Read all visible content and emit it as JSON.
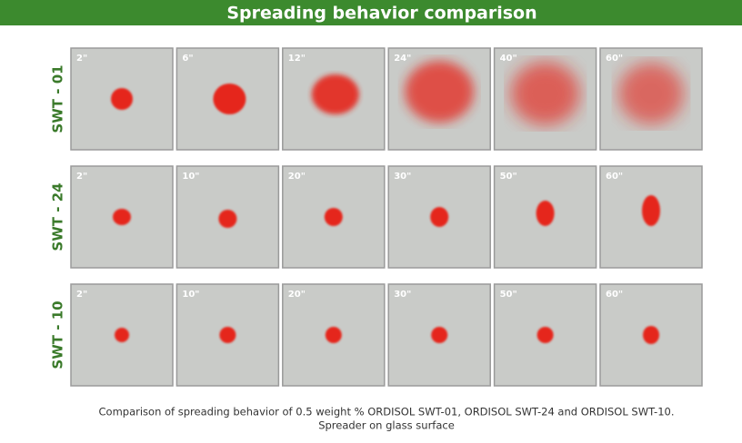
{
  "header": {
    "title": "Spreading behavior comparison"
  },
  "rows": [
    {
      "label": "SWT - 01",
      "times": [
        "2\"",
        "6\"",
        "12\"",
        "24\"",
        "40\"",
        "60\""
      ]
    },
    {
      "label": "SWT - 24",
      "times": [
        "2\"",
        "10\"",
        "20\"",
        "30\"",
        "50\"",
        "60\""
      ]
    },
    {
      "label": "SWT - 10",
      "times": [
        "2\"",
        "10\"",
        "20\"",
        "30\"",
        "50\"",
        "60\""
      ]
    }
  ],
  "caption": [
    "Comparison of spreading behavior of 0.5 weight % ORDISOL SWT-01, ORDISOL SWT-24 and ORDISOL SWT-10.",
    "Spreader on glass surface"
  ]
}
